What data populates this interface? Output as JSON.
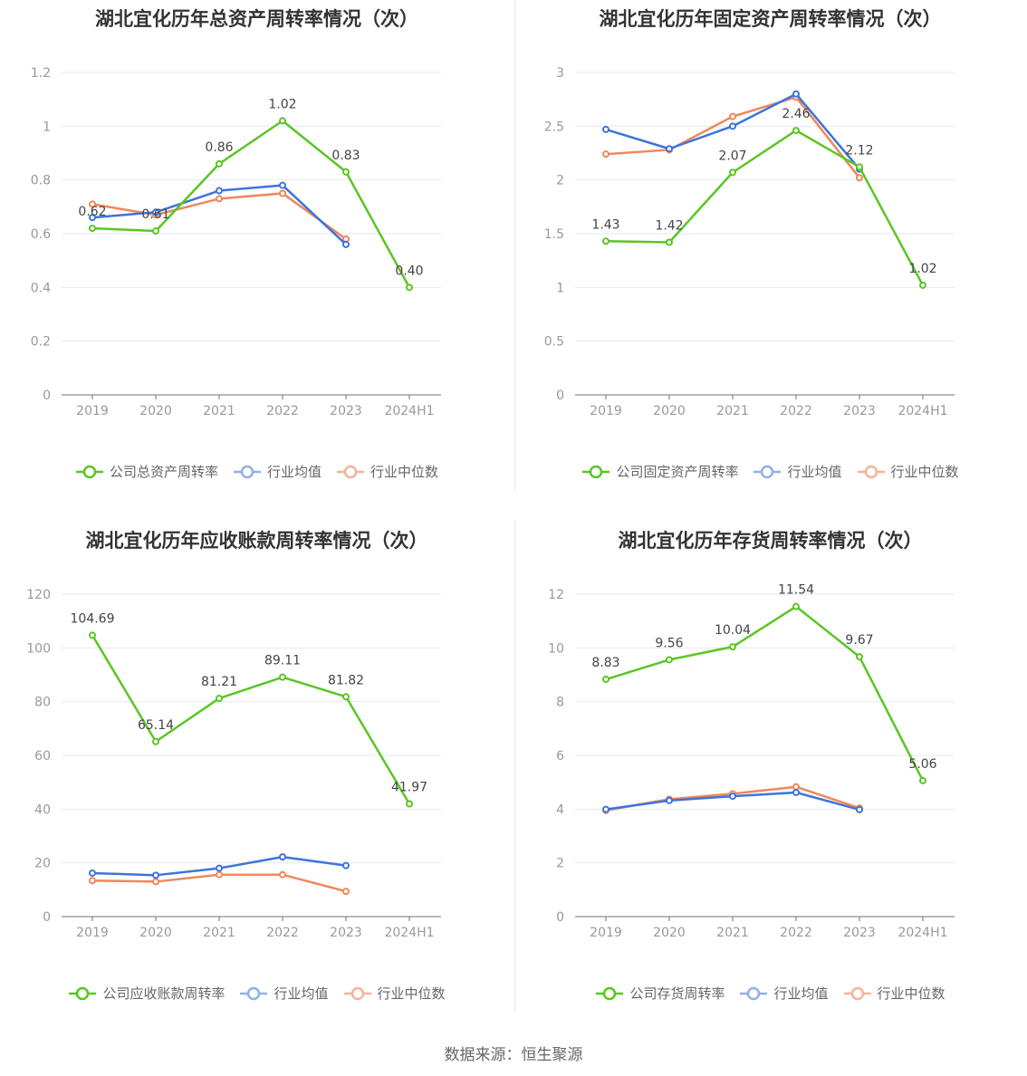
{
  "source": "数据来源：恒生聚源",
  "colors": {
    "company": "#5ac624",
    "avg": "#3c74dc",
    "median": "#f0875a"
  },
  "chart_data": [
    {
      "type": "line",
      "title": "湖北宜化历年总资产周转率情况（次）",
      "categories": [
        "2019",
        "2020",
        "2021",
        "2022",
        "2023",
        "2024H1"
      ],
      "yticks": [
        "0",
        "0.2",
        "0.4",
        "0.6",
        "0.8",
        "1",
        "1.2"
      ],
      "ylim": [
        0,
        1.2
      ],
      "series": [
        {
          "name": "公司总资产周转率",
          "values": [
            0.62,
            0.61,
            0.86,
            1.02,
            0.83,
            0.4
          ],
          "labels": [
            "0.62",
            "0.61",
            "0.86",
            "1.02",
            "0.83",
            "0.40"
          ]
        },
        {
          "name": "行业均值",
          "values": [
            0.66,
            0.68,
            0.76,
            0.78,
            0.56,
            null
          ]
        },
        {
          "name": "行业中位数",
          "values": [
            0.71,
            0.67,
            0.73,
            0.75,
            0.58,
            null
          ]
        }
      ]
    },
    {
      "type": "line",
      "title": "湖北宜化历年固定资产周转率情况（次）",
      "categories": [
        "2019",
        "2020",
        "2021",
        "2022",
        "2023",
        "2024H1"
      ],
      "yticks": [
        "0",
        "0.5",
        "1",
        "1.5",
        "2",
        "2.5",
        "3"
      ],
      "ylim": [
        0,
        3
      ],
      "series": [
        {
          "name": "公司固定资产周转率",
          "values": [
            1.43,
            1.42,
            2.07,
            2.46,
            2.12,
            1.02
          ],
          "labels": [
            "1.43",
            "1.42",
            "2.07",
            "2.46",
            "2.12",
            "1.02"
          ]
        },
        {
          "name": "行业均值",
          "values": [
            2.47,
            2.29,
            2.5,
            2.8,
            2.1,
            null
          ]
        },
        {
          "name": "行业中位数",
          "values": [
            2.24,
            2.28,
            2.59,
            2.77,
            2.02,
            null
          ]
        }
      ]
    },
    {
      "type": "line",
      "title": "湖北宜化历年应收账款周转率情况（次）",
      "categories": [
        "2019",
        "2020",
        "2021",
        "2022",
        "2023",
        "2024H1"
      ],
      "yticks": [
        "0",
        "20",
        "40",
        "60",
        "80",
        "100",
        "120"
      ],
      "ylim": [
        0,
        120
      ],
      "series": [
        {
          "name": "公司应收账款周转率",
          "values": [
            104.69,
            65.14,
            81.21,
            89.11,
            81.82,
            41.97
          ],
          "labels": [
            "104.69",
            "65.14",
            "81.21",
            "89.11",
            "81.82",
            "41.97"
          ]
        },
        {
          "name": "行业均值",
          "values": [
            16.2,
            15.4,
            18.0,
            22.2,
            19.0,
            null
          ]
        },
        {
          "name": "行业中位数",
          "values": [
            13.4,
            13.0,
            15.6,
            15.6,
            9.4,
            null
          ]
        }
      ]
    },
    {
      "type": "line",
      "title": "湖北宜化历年存货周转率情况（次）",
      "categories": [
        "2019",
        "2020",
        "2021",
        "2022",
        "2023",
        "2024H1"
      ],
      "yticks": [
        "0",
        "2",
        "4",
        "6",
        "8",
        "10",
        "12"
      ],
      "ylim": [
        0,
        12
      ],
      "series": [
        {
          "name": "公司存货周转率",
          "values": [
            8.83,
            9.56,
            10.04,
            11.54,
            9.67,
            5.06
          ],
          "labels": [
            "8.83",
            "9.56",
            "10.04",
            "11.54",
            "9.67",
            "5.06"
          ]
        },
        {
          "name": "行业均值",
          "values": [
            3.99,
            4.32,
            4.48,
            4.62,
            3.98,
            null
          ]
        },
        {
          "name": "行业中位数",
          "values": [
            3.95,
            4.37,
            4.57,
            4.83,
            4.04,
            null
          ]
        }
      ]
    }
  ]
}
